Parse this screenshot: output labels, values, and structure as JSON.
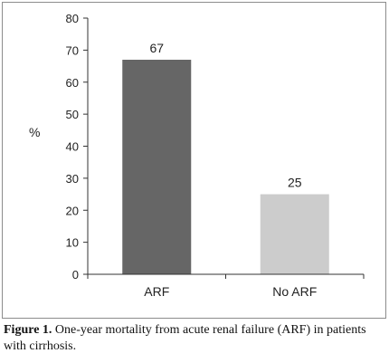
{
  "chart_data": {
    "type": "bar",
    "categories": [
      "ARF",
      "No ARF"
    ],
    "values": [
      67,
      25
    ],
    "data_labels": [
      "67",
      "25"
    ],
    "colors": [
      "#666666",
      "#cccccc"
    ],
    "title": "",
    "xlabel": "",
    "ylabel": "%",
    "ylim": [
      0,
      80
    ],
    "yticks": [
      0,
      10,
      20,
      30,
      40,
      50,
      60,
      70,
      80
    ],
    "grid": false,
    "legend": "none"
  },
  "caption": {
    "label": "Figure 1.",
    "text": " One-year mortality from acute renal failure (ARF) in patients with cirrhosis."
  }
}
